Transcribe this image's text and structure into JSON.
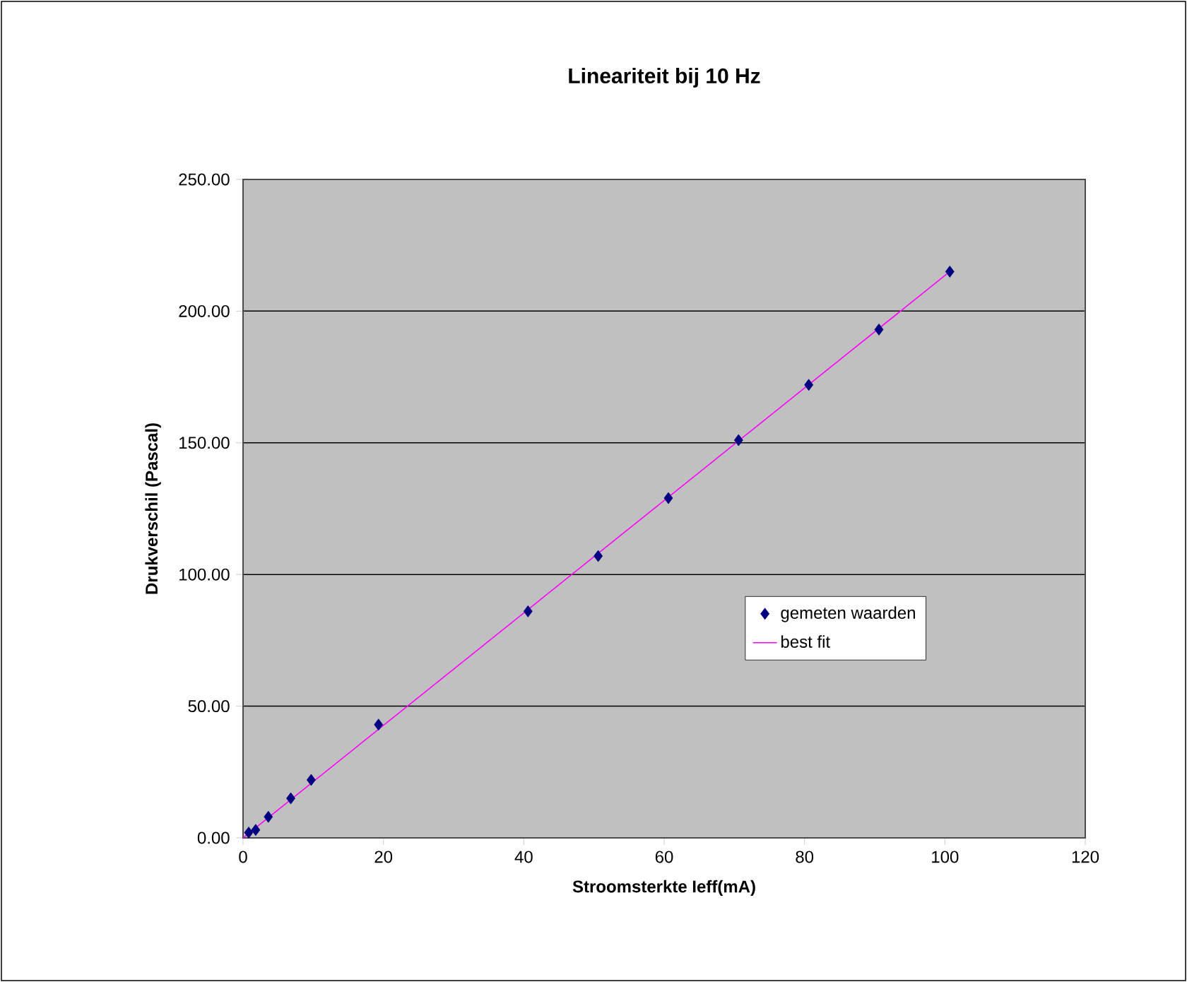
{
  "chart_data": {
    "type": "scatter",
    "title": "Lineariteit bij 10 Hz",
    "xlabel": "Stroomsterkte Ieff(mA)",
    "ylabel": "Drukverschil (Pascal)",
    "xlim": [
      0,
      120
    ],
    "xticks": [
      0,
      20,
      40,
      60,
      80,
      100,
      120
    ],
    "ylim": [
      0,
      250
    ],
    "yticks": [
      {
        "value": 0,
        "label": "0.00"
      },
      {
        "value": 50,
        "label": "50.00"
      },
      {
        "value": 100,
        "label": "100.00"
      },
      {
        "value": 150,
        "label": "150.00"
      },
      {
        "value": 200,
        "label": "200.00"
      },
      {
        "value": 250,
        "label": "250.00"
      }
    ],
    "grid": "y",
    "legend": "right",
    "series": [
      {
        "name": "gemeten waarden",
        "marker": "diamond",
        "color": "#000080",
        "x": [
          0.8,
          1.8,
          3.6,
          6.8,
          9.7,
          19.3,
          40.6,
          50.6,
          60.6,
          70.6,
          80.6,
          90.6,
          100.7
        ],
        "values": [
          2,
          3,
          8,
          15,
          22,
          43,
          86,
          107,
          129,
          151,
          172,
          193,
          215
        ]
      },
      {
        "name": "best fit",
        "type": "line",
        "marker": "none",
        "color": "#ff00ff",
        "x": [
          0,
          100.7
        ],
        "values": [
          0,
          215
        ]
      }
    ]
  }
}
